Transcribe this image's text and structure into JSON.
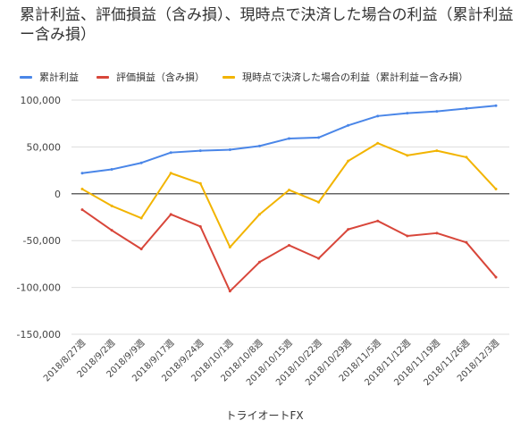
{
  "title": "累計利益、評価損益（含み損）、現時点で決済した場合の利益（累計利益ー含み損）",
  "legend": [
    {
      "label": "累計利益",
      "color": "#4a86e8"
    },
    {
      "label": "評価損益（含み損）",
      "color": "#d8463a"
    },
    {
      "label": "現時点で決済した場合の利益（累計利益ー含み損）",
      "color": "#f2b400"
    }
  ],
  "chart_data": {
    "type": "line",
    "title": "累計利益、評価損益（含み損）、現時点で決済した場合の利益（累計利益ー含み損）",
    "xlabel": "トライオートFX",
    "ylabel": "",
    "ylim": [
      -150000,
      100000
    ],
    "yticks": [
      100000,
      50000,
      0,
      -50000,
      -100000,
      -150000
    ],
    "ytick_labels": [
      "100,000",
      "50,000",
      "0",
      "-50,000",
      "-100,000",
      "-150,000"
    ],
    "grid": true,
    "legend_position": "top-left",
    "categories": [
      "2018/8/27週",
      "2018/9/2週",
      "2018/9/9週",
      "2018/9/17週",
      "2018/9/24週",
      "2018/10/1週",
      "2018/10/8週",
      "2018/10/15週",
      "2018/10/22週",
      "2018/10/29週",
      "2018/11/5週",
      "2018/11/12週",
      "2018/11/19週",
      "2018/11/26週",
      "2018/12/3週"
    ],
    "series": [
      {
        "name": "累計利益",
        "color": "#4a86e8",
        "values": [
          22000,
          26000,
          33000,
          44000,
          46000,
          47000,
          51000,
          59000,
          60000,
          73000,
          83000,
          86000,
          88000,
          91000,
          94000
        ]
      },
      {
        "name": "評価損益（含み損）",
        "color": "#d8463a",
        "values": [
          -17000,
          -39000,
          -59000,
          -22000,
          -35000,
          -104000,
          -73000,
          -55000,
          -69000,
          -38000,
          -29000,
          -45000,
          -42000,
          -52000,
          -89000
        ]
      },
      {
        "name": "現時点で決済した場合の利益（累計利益ー含み損）",
        "color": "#f2b400",
        "values": [
          5000,
          -13000,
          -26000,
          22000,
          11000,
          -57000,
          -22000,
          4000,
          -9000,
          35000,
          54000,
          41000,
          46000,
          39000,
          5000
        ]
      }
    ]
  }
}
